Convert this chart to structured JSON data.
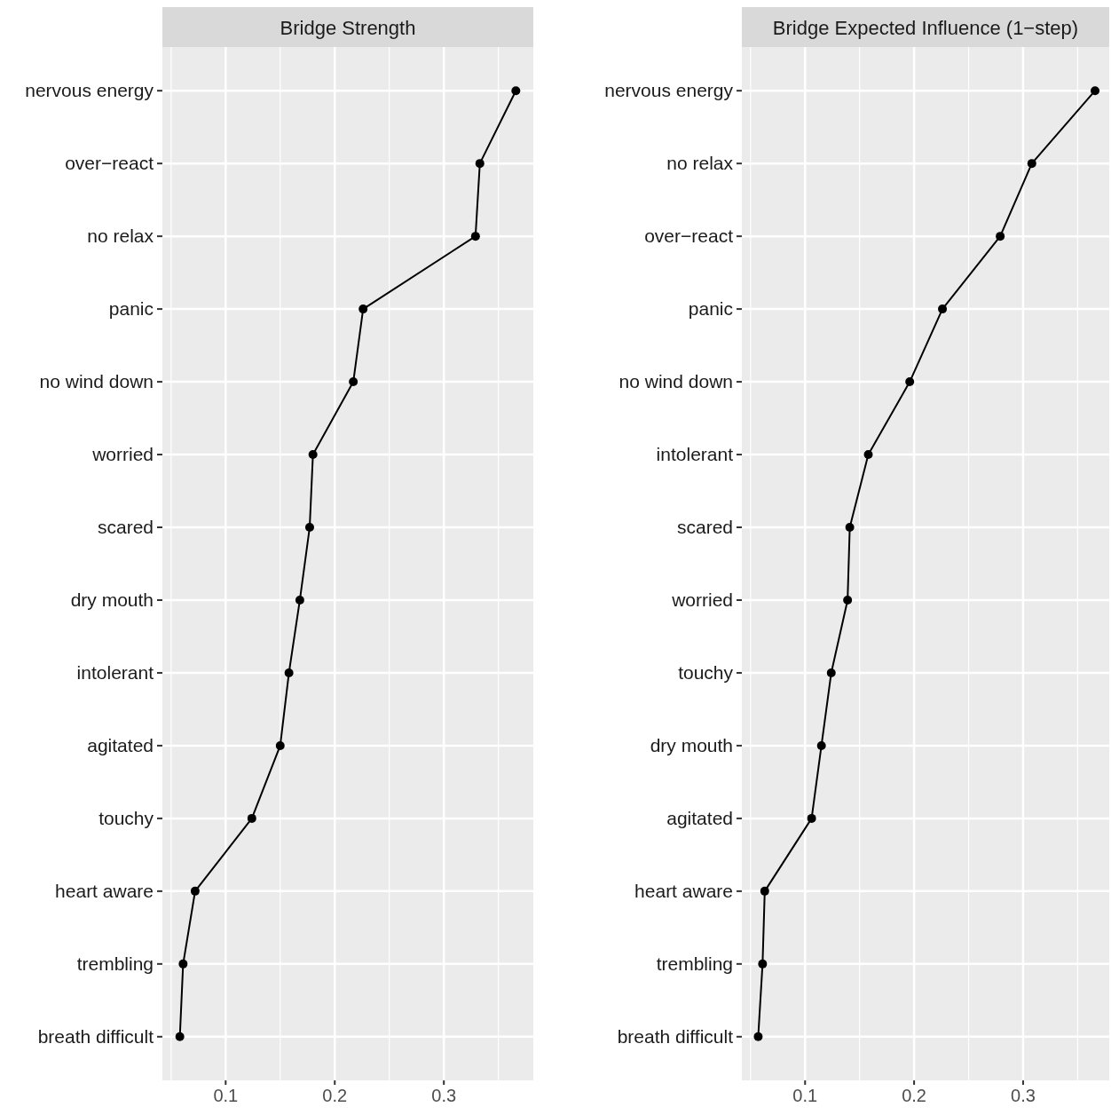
{
  "chart_data": [
    {
      "type": "line",
      "title": "Bridge Strength",
      "orientation": "horizontal",
      "categories": [
        "nervous energy",
        "over−react",
        "no relax",
        "panic",
        "no wind down",
        "worried",
        "scared",
        "dry mouth",
        "intolerant",
        "agitated",
        "touchy",
        "heart aware",
        "trembling",
        "breath difficult"
      ],
      "series": [
        {
          "color": "#000000",
          "values": [
            0.366,
            0.333,
            0.329,
            0.226,
            0.217,
            0.18,
            0.177,
            0.168,
            0.158,
            0.15,
            0.124,
            0.072,
            0.061,
            0.058
          ]
        }
      ],
      "xlim": [
        0.042,
        0.382
      ],
      "xticks": [
        0.1,
        0.2,
        0.3
      ],
      "grid": true,
      "marker": "circle"
    },
    {
      "type": "line",
      "title": "Bridge Expected Influence (1−step)",
      "orientation": "horizontal",
      "categories": [
        "nervous energy",
        "no relax",
        "over−react",
        "panic",
        "no wind down",
        "intolerant",
        "scared",
        "worried",
        "touchy",
        "dry mouth",
        "agitated",
        "heart aware",
        "trembling",
        "breath difficult"
      ],
      "series": [
        {
          "color": "#000000",
          "values": [
            0.366,
            0.308,
            0.279,
            0.226,
            0.196,
            0.158,
            0.141,
            0.139,
            0.124,
            0.115,
            0.106,
            0.063,
            0.061,
            0.057
          ]
        }
      ],
      "xlim": [
        0.042,
        0.379
      ],
      "xticks": [
        0.1,
        0.2,
        0.3
      ],
      "grid": true,
      "marker": "circle"
    }
  ]
}
